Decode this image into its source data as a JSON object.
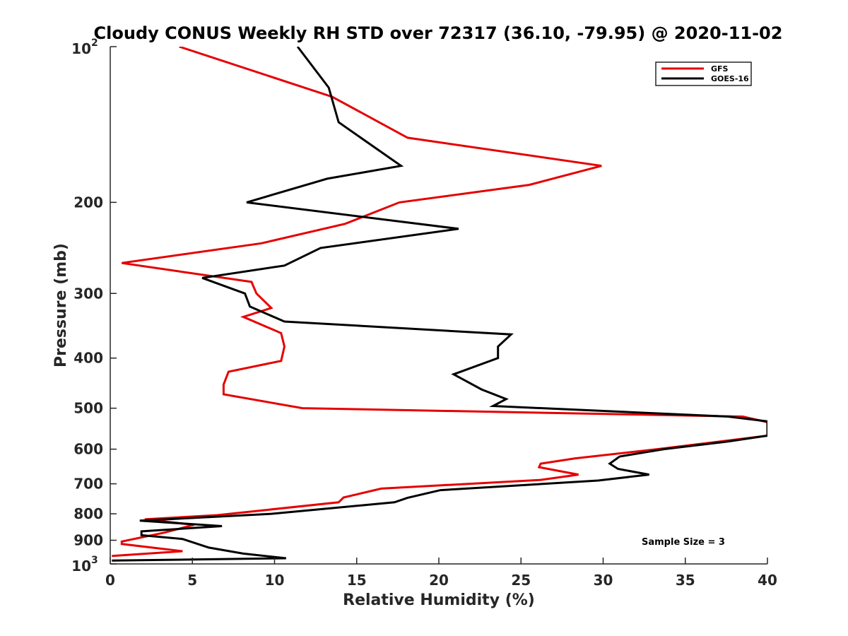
{
  "chart_data": {
    "type": "line",
    "title": "Cloudy CONUS Weekly RH STD over 72317 (36.10, -79.95) @ 2020-11-02",
    "xlabel": "Relative Humidity (%)",
    "ylabel": "Pressure (mb)",
    "xlim": [
      0,
      40
    ],
    "ylim": [
      100,
      1000
    ],
    "y_scale": "log",
    "y_reversed": true,
    "grid": false,
    "legend_position": "top-right",
    "annotation": "Sample Size = 3",
    "x_ticks": [
      "0",
      "5",
      "10",
      "15",
      "20",
      "25",
      "30",
      "35",
      "40"
    ],
    "x_tick_values": [
      0,
      5,
      10,
      15,
      20,
      25,
      30,
      35,
      40
    ],
    "y_ticks": [
      {
        "value": 100,
        "base": "10",
        "exp": "2"
      },
      {
        "value": 200,
        "label": "200"
      },
      {
        "value": 300,
        "label": "300"
      },
      {
        "value": 400,
        "label": "400"
      },
      {
        "value": 500,
        "label": "500"
      },
      {
        "value": 600,
        "label": "600"
      },
      {
        "value": 700,
        "label": "700"
      },
      {
        "value": 800,
        "label": "800"
      },
      {
        "value": 900,
        "label": "900"
      },
      {
        "value": 1000,
        "base": "10",
        "exp": "3"
      }
    ],
    "series": [
      {
        "name": "GFS",
        "color": "#e60000",
        "points": [
          [
            4.2,
            100
          ],
          [
            13.5,
            125
          ],
          [
            18.1,
            150
          ],
          [
            29.9,
            170
          ],
          [
            25.5,
            185
          ],
          [
            17.6,
            200
          ],
          [
            14.3,
            220
          ],
          [
            9.2,
            240
          ],
          [
            0.7,
            262
          ],
          [
            8.6,
            285
          ],
          [
            8.9,
            300
          ],
          [
            9.8,
            320
          ],
          [
            8.1,
            333
          ],
          [
            10.4,
            358
          ],
          [
            10.6,
            380
          ],
          [
            10.4,
            405
          ],
          [
            7.2,
            425
          ],
          [
            6.9,
            450
          ],
          [
            6.9,
            470
          ],
          [
            11.7,
            500
          ],
          [
            38.5,
            519
          ],
          [
            40.0,
            532
          ],
          [
            40.0,
            565
          ],
          [
            33.3,
            600
          ],
          [
            28.3,
            625
          ],
          [
            26.2,
            640
          ],
          [
            26.1,
            650
          ],
          [
            28.5,
            672
          ],
          [
            26.2,
            688
          ],
          [
            16.5,
            715
          ],
          [
            14.2,
            744
          ],
          [
            13.9,
            760
          ],
          [
            6.5,
            805
          ],
          [
            2.1,
            820
          ],
          [
            5.1,
            840
          ],
          [
            3.3,
            870
          ],
          [
            0.7,
            905
          ],
          [
            0.7,
            915
          ],
          [
            4.4,
            945
          ],
          [
            0.1,
            965
          ]
        ]
      },
      {
        "name": "GOES-16",
        "color": "#000000",
        "points": [
          [
            11.4,
            100
          ],
          [
            13.3,
            120
          ],
          [
            13.9,
            140
          ],
          [
            17.7,
            170
          ],
          [
            13.2,
            180
          ],
          [
            8.3,
            200
          ],
          [
            21.2,
            225
          ],
          [
            12.8,
            245
          ],
          [
            10.6,
            265
          ],
          [
            5.6,
            280
          ],
          [
            8.2,
            300
          ],
          [
            8.5,
            318
          ],
          [
            10.6,
            340
          ],
          [
            24.4,
            360
          ],
          [
            23.6,
            380
          ],
          [
            23.6,
            400
          ],
          [
            20.9,
            430
          ],
          [
            22.6,
            460
          ],
          [
            24.1,
            480
          ],
          [
            23.3,
            495
          ],
          [
            37.6,
            519
          ],
          [
            40.0,
            530
          ],
          [
            40.0,
            565
          ],
          [
            37.6,
            580
          ],
          [
            33.7,
            600
          ],
          [
            31.0,
            620
          ],
          [
            30.4,
            640
          ],
          [
            30.9,
            655
          ],
          [
            32.8,
            672
          ],
          [
            29.7,
            690
          ],
          [
            20.1,
            720
          ],
          [
            18.1,
            745
          ],
          [
            17.3,
            760
          ],
          [
            9.8,
            800
          ],
          [
            1.8,
            825
          ],
          [
            6.8,
            845
          ],
          [
            1.9,
            865
          ],
          [
            1.9,
            880
          ],
          [
            4.4,
            895
          ],
          [
            6.0,
            930
          ],
          [
            8.1,
            955
          ],
          [
            10.7,
            975
          ],
          [
            0.1,
            985
          ]
        ]
      }
    ]
  }
}
